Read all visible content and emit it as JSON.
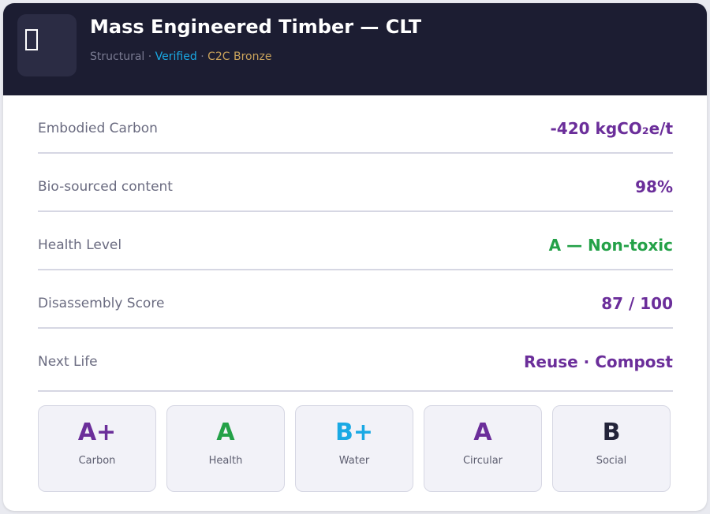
{
  "header": {
    "title": "Mass Engineered Timber — CLT",
    "subtitle": {
      "category": "Structural",
      "separator": "·",
      "verified": "Verified",
      "certification": "C2C Bronze"
    },
    "thumbnail_icon": "missing-glyph-icon"
  },
  "metrics": [
    {
      "label": "Embodied Carbon",
      "value": "-420 kgCO₂e/t",
      "color": "#6b2e9a"
    },
    {
      "label": "Bio-sourced content",
      "value": "98%",
      "color": "#6b2e9a"
    },
    {
      "label": "Health Level",
      "value": "A — Non-toxic",
      "color": "#24a148"
    },
    {
      "label": "Disassembly Score",
      "value": "87 / 100",
      "color": "#6b2e9a"
    },
    {
      "label": "Next Life",
      "value": "Reuse · Compost",
      "color": "#6b2e9a"
    }
  ],
  "ratings": [
    {
      "grade": "A+",
      "label": "Carbon",
      "color": "#6b2e9a"
    },
    {
      "grade": "A",
      "label": "Health",
      "color": "#24a148"
    },
    {
      "grade": "B+",
      "label": "Water",
      "color": "#1aa9e4"
    },
    {
      "grade": "A",
      "label": "Circular",
      "color": "#6b2e9a"
    },
    {
      "grade": "B",
      "label": "Social",
      "color": "#23243a"
    }
  ]
}
